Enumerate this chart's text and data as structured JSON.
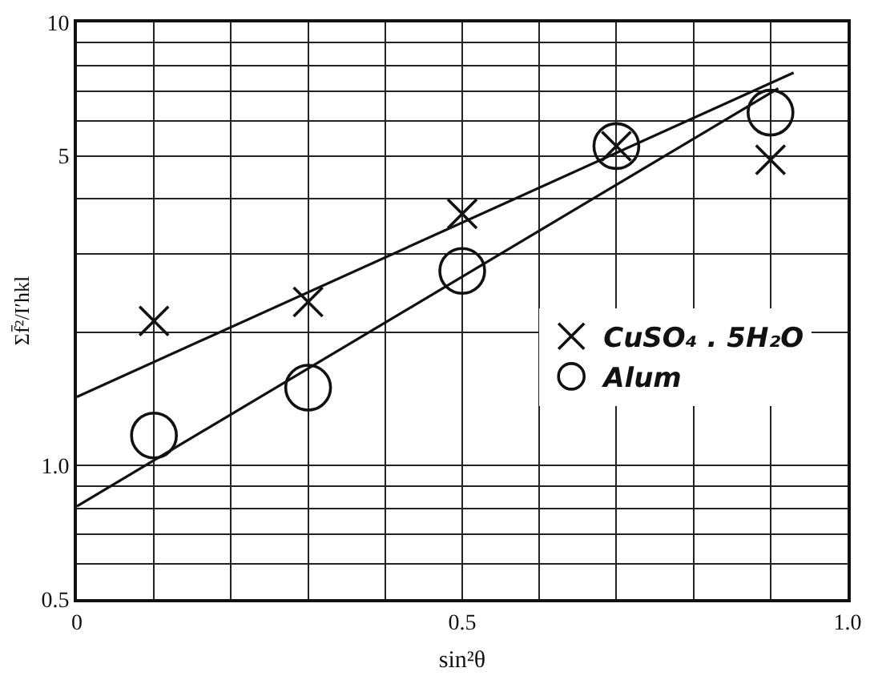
{
  "chart_data": {
    "type": "scatter",
    "xlabel": "sin²θ",
    "ylabel": "Σf̄²/I′hkl",
    "series": [
      {
        "name": "CuSO₄ . 5H₂O",
        "color": "#111111",
        "marker": "cross",
        "x": [
          0.1,
          0.3,
          0.5,
          0.7,
          0.9
        ],
        "values": [
          2.12,
          2.34,
          3.7,
          5.26,
          4.9
        ]
      },
      {
        "name": "Alum",
        "color": "#111111",
        "marker": "circle",
        "x": [
          0.1,
          0.3,
          0.5,
          0.7,
          0.9
        ],
        "values": [
          1.17,
          1.5,
          2.75,
          5.26,
          6.26
        ]
      },
      {
        "type": "line",
        "color": "#111111",
        "marker": "none",
        "line_style": "solid",
        "x": [
          0,
          0.93
        ],
        "values": [
          1.43,
          7.7
        ]
      },
      {
        "type": "line",
        "color": "#111111",
        "marker": "none",
        "line_style": "solid",
        "x": [
          0,
          0.91
        ],
        "values": [
          0.81,
          7.1
        ]
      }
    ],
    "xlim": [
      0,
      1
    ],
    "ylim": [
      0.5,
      10
    ],
    "log": "y",
    "grid": true,
    "legend": "right",
    "xticks": [
      0,
      {
        "value": 0.1,
        "label": null
      },
      {
        "value": 0.2,
        "label": null
      },
      {
        "value": 0.3,
        "label": null
      },
      {
        "value": 0.4,
        "label": null
      },
      0.5,
      {
        "value": 0.6,
        "label": null
      },
      {
        "value": 0.7,
        "label": null
      },
      {
        "value": 0.8,
        "label": null
      },
      {
        "value": 0.9,
        "label": null
      },
      {
        "value": 1,
        "label": "1.0"
      }
    ],
    "yticks": [
      0.5,
      {
        "value": 0.6,
        "label": null
      },
      {
        "value": 0.7,
        "label": null
      },
      {
        "value": 0.8,
        "label": null
      },
      {
        "value": 0.9,
        "label": null
      },
      {
        "value": 1,
        "label": "1.0"
      },
      {
        "value": 2,
        "label": null
      },
      {
        "value": 3,
        "label": null
      },
      {
        "value": 4,
        "label": null
      },
      5,
      {
        "value": 6,
        "label": null
      },
      {
        "value": 7,
        "label": null
      },
      {
        "value": 8,
        "label": null
      },
      {
        "value": 9,
        "label": null
      },
      10
    ]
  }
}
